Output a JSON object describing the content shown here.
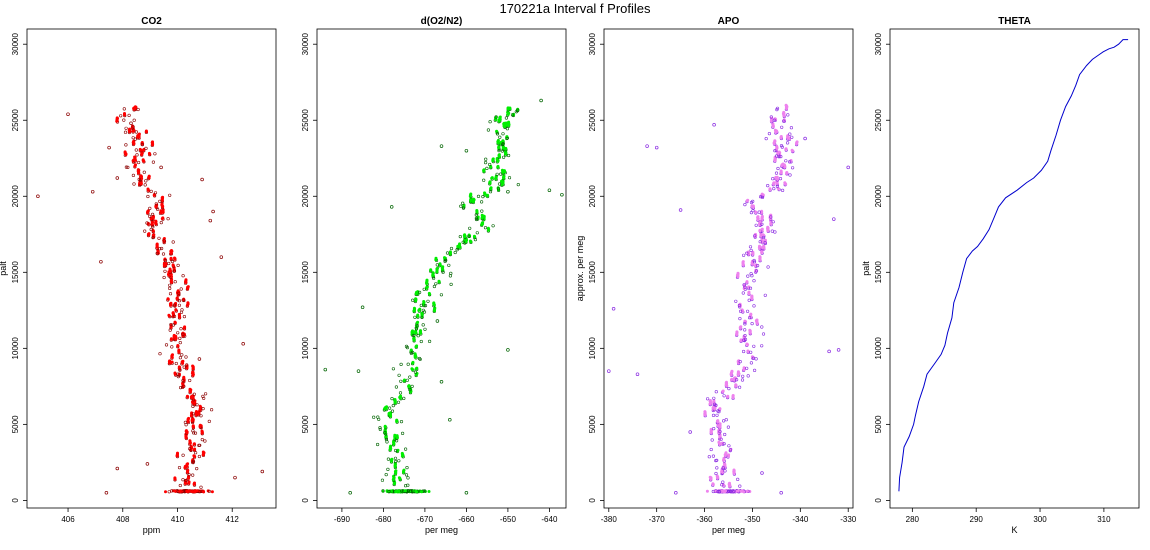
{
  "figure": {
    "title": "170221a   Interval f Profiles"
  },
  "chart_data": [
    {
      "type": "scatter",
      "title": "CO2",
      "xlabel": "ppm",
      "ylabel": "palt",
      "xlim": [
        404.5,
        413.6
      ],
      "ylim": [
        -500,
        31000
      ],
      "xticks": [
        406,
        408,
        410,
        412
      ],
      "yticks": [
        0,
        5000,
        10000,
        15000,
        20000,
        25000,
        30000
      ],
      "color": "#ff0000",
      "edge_color": "#8b0000",
      "spine": [
        [
          410.4,
          600
        ],
        [
          410.3,
          2000
        ],
        [
          410.6,
          4000
        ],
        [
          410.7,
          6000
        ],
        [
          410.3,
          8000
        ],
        [
          409.9,
          10000
        ],
        [
          410.0,
          12000
        ],
        [
          409.9,
          14000
        ],
        [
          409.6,
          16000
        ],
        [
          409.1,
          18000
        ],
        [
          409.4,
          19500
        ],
        [
          408.7,
          20500
        ],
        [
          408.6,
          22000
        ],
        [
          408.7,
          23500
        ],
        [
          408.2,
          25000
        ],
        [
          408.5,
          25800
        ]
      ],
      "points": [
        [
          404.9,
          20000
        ],
        [
          406.0,
          25400
        ],
        [
          407.5,
          23200
        ],
        [
          407.8,
          21200
        ],
        [
          406.9,
          20300
        ],
        [
          407.2,
          15700
        ],
        [
          409.4,
          21900
        ],
        [
          408.3,
          24800
        ],
        [
          412.4,
          10300
        ],
        [
          413.1,
          1900
        ],
        [
          407.4,
          500
        ],
        [
          411.6,
          16000
        ],
        [
          410.9,
          21100
        ],
        [
          411.3,
          19000
        ],
        [
          408.9,
          2400
        ],
        [
          407.8,
          2100
        ],
        [
          412.1,
          1500
        ],
        [
          411.2,
          18400
        ],
        [
          410.8,
          9300
        ]
      ]
    },
    {
      "type": "scatter",
      "title": "d(O2/N2)",
      "xlabel": "per meg",
      "ylabel": "",
      "xlim": [
        -696,
        -636
      ],
      "ylim": [
        -500,
        31000
      ],
      "xticks": [
        -690,
        -680,
        -670,
        -660,
        -650,
        -640
      ],
      "yticks": [
        0,
        5000,
        10000,
        15000,
        20000,
        25000,
        30000
      ],
      "color": "#00ee00",
      "edge_color": "#006400",
      "spine": [
        [
          -675,
          600
        ],
        [
          -677,
          2000
        ],
        [
          -678,
          4000
        ],
        [
          -679,
          6000
        ],
        [
          -674,
          8000
        ],
        [
          -673,
          10000
        ],
        [
          -671,
          12000
        ],
        [
          -669,
          14000
        ],
        [
          -664,
          16000
        ],
        [
          -656,
          18000
        ],
        [
          -660,
          19500
        ],
        [
          -652,
          20500
        ],
        [
          -653,
          22000
        ],
        [
          -652,
          23500
        ],
        [
          -651,
          25000
        ],
        [
          -648,
          25800
        ]
      ],
      "points": [
        [
          -694,
          8600
        ],
        [
          -686,
          8500
        ],
        [
          -685,
          12700
        ],
        [
          -666,
          23300
        ],
        [
          -660,
          23000
        ],
        [
          -650,
          20300
        ],
        [
          -640,
          20400
        ],
        [
          -637,
          20100
        ],
        [
          -642,
          26300
        ],
        [
          -667,
          11800
        ],
        [
          -650,
          9900
        ],
        [
          -666,
          7800
        ],
        [
          -688,
          500
        ],
        [
          -660,
          500
        ],
        [
          -678,
          19300
        ],
        [
          -664,
          5300
        ]
      ]
    },
    {
      "type": "scatter",
      "title": "APO",
      "xlabel": "per meg",
      "ylabel": "approx. per meg",
      "xlim": [
        -381,
        -329
      ],
      "ylim": [
        -500,
        31000
      ],
      "xticks": [
        -380,
        -370,
        -360,
        -350,
        -340,
        -330
      ],
      "yticks": [
        0,
        5000,
        10000,
        15000,
        20000,
        25000,
        30000
      ],
      "color": "#ee82ee",
      "edge_color": "#8a2be2",
      "spine": [
        [
          -355,
          600
        ],
        [
          -356,
          2000
        ],
        [
          -357,
          4000
        ],
        [
          -358,
          6000
        ],
        [
          -353,
          8000
        ],
        [
          -351,
          10000
        ],
        [
          -351,
          12000
        ],
        [
          -351,
          14000
        ],
        [
          -350,
          16000
        ],
        [
          -347,
          18000
        ],
        [
          -351,
          19500
        ],
        [
          -345,
          20500
        ],
        [
          -344,
          22000
        ],
        [
          -344,
          23500
        ],
        [
          -345,
          25000
        ],
        [
          -342,
          25800
        ]
      ],
      "points": [
        [
          -380,
          8500
        ],
        [
          -379,
          12600
        ],
        [
          -372,
          23300
        ],
        [
          -370,
          23200
        ],
        [
          -358,
          24700
        ],
        [
          -330,
          21900
        ],
        [
          -332,
          9900
        ],
        [
          -334,
          9800
        ],
        [
          -333,
          18500
        ],
        [
          -339,
          23800
        ],
        [
          -374,
          8300
        ],
        [
          -366,
          500
        ],
        [
          -344,
          500
        ],
        [
          -363,
          4500
        ],
        [
          -348,
          1800
        ],
        [
          -365,
          19100
        ]
      ]
    },
    {
      "type": "line",
      "title": "THETA",
      "xlabel": "K",
      "ylabel": "palt",
      "xlim": [
        276.5,
        315.5
      ],
      "ylim": [
        -500,
        31000
      ],
      "xticks": [
        280,
        290,
        300,
        310
      ],
      "yticks": [
        0,
        5000,
        10000,
        15000,
        20000,
        25000,
        30000
      ],
      "color": "#0000cd",
      "points": [
        [
          277.9,
          600
        ],
        [
          278.0,
          1500
        ],
        [
          278.4,
          2500
        ],
        [
          278.7,
          3500
        ],
        [
          279.5,
          4200
        ],
        [
          280.2,
          5000
        ],
        [
          280.5,
          5600
        ],
        [
          281.0,
          6500
        ],
        [
          281.8,
          7500
        ],
        [
          282.3,
          8300
        ],
        [
          283.5,
          9000
        ],
        [
          284.5,
          9600
        ],
        [
          285.1,
          10200
        ],
        [
          285.5,
          11000
        ],
        [
          286.2,
          12000
        ],
        [
          286.5,
          13000
        ],
        [
          287.3,
          14000
        ],
        [
          287.9,
          15000
        ],
        [
          288.5,
          15900
        ],
        [
          289.4,
          16400
        ],
        [
          290.2,
          16700
        ],
        [
          291.1,
          17200
        ],
        [
          292.0,
          17800
        ],
        [
          292.8,
          18600
        ],
        [
          293.5,
          19300
        ],
        [
          294.6,
          19900
        ],
        [
          296.4,
          20400
        ],
        [
          297.9,
          20900
        ],
        [
          299.0,
          21200
        ],
        [
          300.2,
          21700
        ],
        [
          301.2,
          22300
        ],
        [
          301.7,
          23000
        ],
        [
          302.5,
          24000
        ],
        [
          303.2,
          25000
        ],
        [
          304.0,
          25900
        ],
        [
          304.9,
          26600
        ],
        [
          305.6,
          27300
        ],
        [
          306.2,
          28000
        ],
        [
          307.3,
          28600
        ],
        [
          308.2,
          29000
        ],
        [
          309.2,
          29300
        ],
        [
          309.9,
          29500
        ],
        [
          310.8,
          29700
        ],
        [
          311.6,
          29800
        ],
        [
          312.3,
          30000
        ],
        [
          313.0,
          30300
        ],
        [
          313.8,
          30300
        ]
      ]
    }
  ]
}
